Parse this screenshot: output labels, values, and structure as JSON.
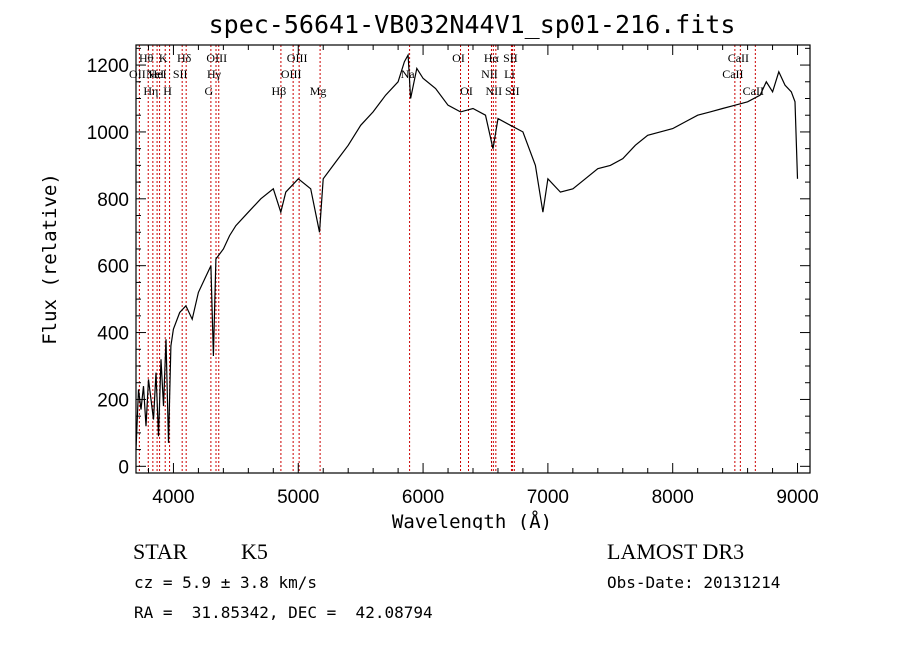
{
  "chart_data": {
    "type": "line",
    "title": "spec-56641-VB032N44V1_sp01-216.fits",
    "xlabel": "Wavelength (Å)",
    "ylabel": "Flux (relative)",
    "xlim": [
      3700,
      9100
    ],
    "ylim": [
      -20,
      1260
    ],
    "x_ticks": [
      4000,
      5000,
      6000,
      7000,
      8000,
      9000
    ],
    "y_ticks": [
      0,
      200,
      400,
      600,
      800,
      1000,
      1200
    ],
    "grid": false,
    "line_color": "#000000",
    "marker_color": "#cc0000",
    "spectrum": {
      "x": [
        3700,
        3720,
        3740,
        3760,
        3780,
        3800,
        3820,
        3840,
        3860,
        3880,
        3900,
        3920,
        3940,
        3960,
        3980,
        4000,
        4050,
        4100,
        4150,
        4200,
        4250,
        4300,
        4320,
        4340,
        4400,
        4450,
        4500,
        4600,
        4700,
        4800,
        4860,
        4900,
        5000,
        5100,
        5170,
        5200,
        5300,
        5400,
        5500,
        5600,
        5700,
        5800,
        5850,
        5880,
        5900,
        5950,
        6000,
        6100,
        6200,
        6300,
        6400,
        6500,
        6560,
        6600,
        6700,
        6800,
        6900,
        6960,
        7000,
        7100,
        7200,
        7300,
        7400,
        7500,
        7600,
        7700,
        7800,
        7900,
        8000,
        8100,
        8200,
        8300,
        8400,
        8500,
        8600,
        8700,
        8750,
        8800,
        8850,
        8900,
        8950,
        8980,
        9000
      ],
      "y": [
        50,
        230,
        170,
        240,
        120,
        260,
        200,
        140,
        280,
        90,
        320,
        180,
        380,
        70,
        360,
        410,
        460,
        480,
        440,
        520,
        560,
        600,
        330,
        620,
        650,
        690,
        720,
        760,
        800,
        830,
        760,
        820,
        860,
        830,
        700,
        860,
        910,
        960,
        1020,
        1060,
        1110,
        1150,
        1210,
        1230,
        1100,
        1190,
        1160,
        1130,
        1080,
        1060,
        1070,
        1050,
        950,
        1040,
        1020,
        1000,
        900,
        760,
        860,
        820,
        830,
        860,
        890,
        900,
        920,
        960,
        990,
        1000,
        1010,
        1030,
        1050,
        1060,
        1070,
        1080,
        1090,
        1110,
        1150,
        1120,
        1180,
        1140,
        1120,
        1090,
        860
      ]
    },
    "lines": [
      {
        "wave": 3727,
        "label": "OII",
        "row": 2
      },
      {
        "wave": 3798,
        "label": "Hθ",
        "row": 1
      },
      {
        "wave": 3835,
        "label": "Hη",
        "row": 3
      },
      {
        "wave": 3869,
        "label": "NeI",
        "row": 2
      },
      {
        "wave": 3889,
        "label": "HeI",
        "row": 2
      },
      {
        "wave": 3934,
        "label": "K",
        "row": 1
      },
      {
        "wave": 3969,
        "label": "H",
        "row": 3
      },
      {
        "wave": 4070,
        "label": "SII",
        "row": 2
      },
      {
        "wave": 4102,
        "label": "Hδ",
        "row": 1
      },
      {
        "wave": 4300,
        "label": "G",
        "row": 3
      },
      {
        "wave": 4341,
        "label": "Hγ",
        "row": 2
      },
      {
        "wave": 4363,
        "label": "OIII",
        "row": 1
      },
      {
        "wave": 4861,
        "label": "Hβ",
        "row": 3
      },
      {
        "wave": 4959,
        "label": "OIII",
        "row": 2
      },
      {
        "wave": 5007,
        "label": "OIII",
        "row": 1
      },
      {
        "wave": 5175,
        "label": "Mg",
        "row": 3
      },
      {
        "wave": 5892,
        "label": "Na",
        "row": 2
      },
      {
        "wave": 6300,
        "label": "OI",
        "row": 1
      },
      {
        "wave": 6364,
        "label": "OI",
        "row": 3
      },
      {
        "wave": 6548,
        "label": "NII",
        "row": 2
      },
      {
        "wave": 6563,
        "label": "Hα",
        "row": 1
      },
      {
        "wave": 6583,
        "label": "NII",
        "row": 3
      },
      {
        "wave": 6708,
        "label": "Li",
        "row": 2
      },
      {
        "wave": 6716,
        "label": "SII",
        "row": 1
      },
      {
        "wave": 6731,
        "label": "SII",
        "row": 3
      },
      {
        "wave": 8498,
        "label": "CaII",
        "row": 2
      },
      {
        "wave": 8542,
        "label": "CaII",
        "row": 1
      },
      {
        "wave": 8662,
        "label": "CaII",
        "row": 3
      }
    ]
  },
  "info": {
    "class": "STAR",
    "subclass": "K5",
    "survey": "LAMOST DR3",
    "cz": "cz = 5.9 ± 3.8 km/s",
    "obs_date": "Obs-Date: 20131214",
    "coords": "RA =  31.85342, DEC =  42.08794"
  }
}
